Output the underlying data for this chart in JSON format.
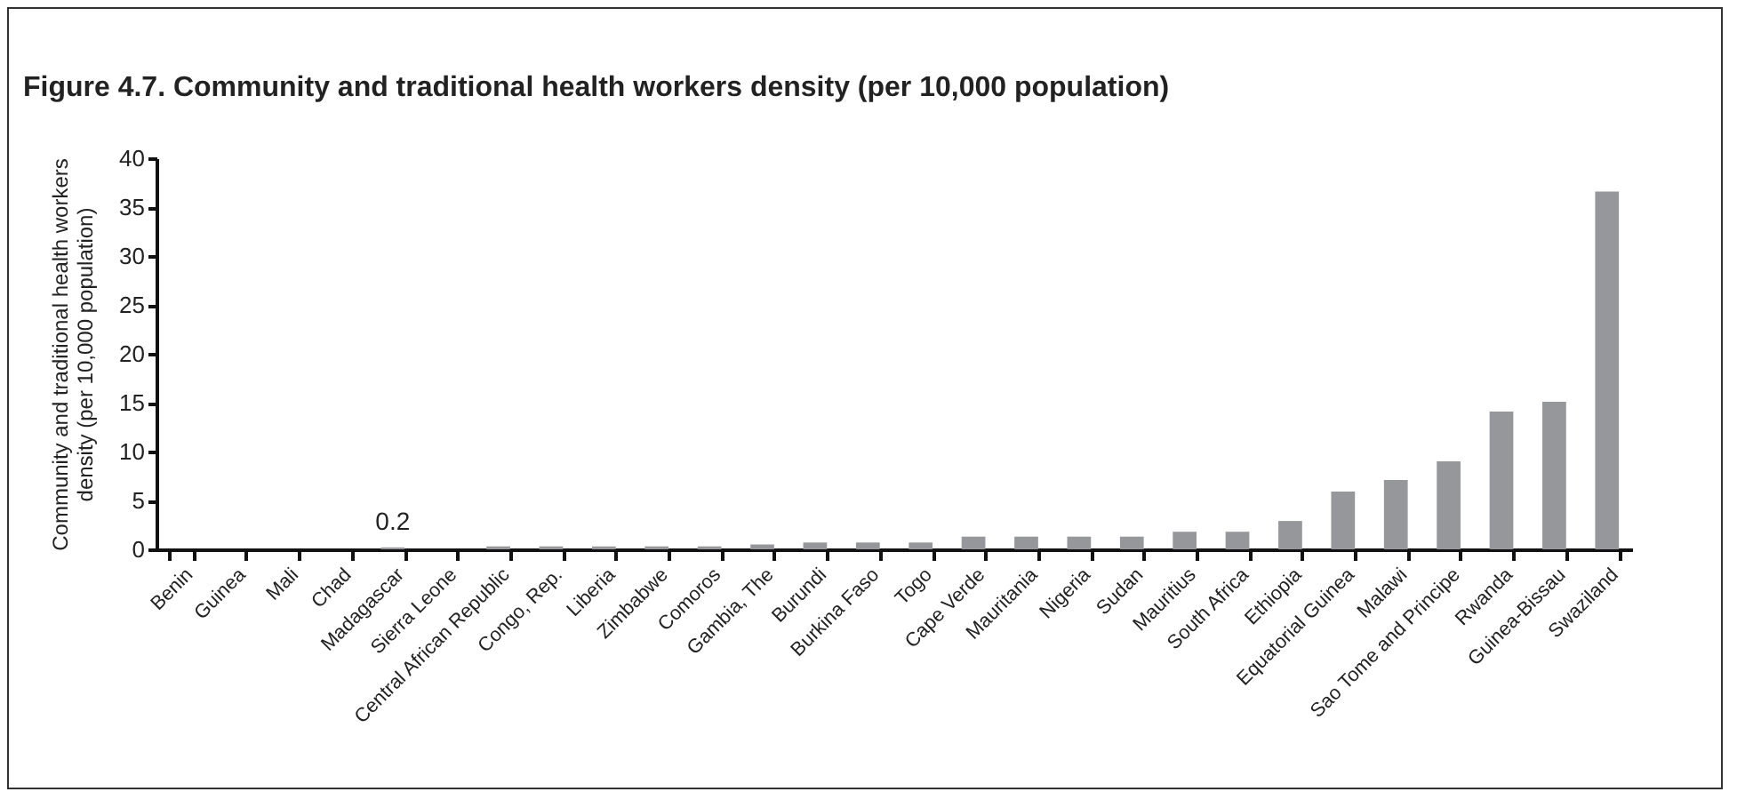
{
  "chart_data": {
    "type": "bar",
    "title": "Figure 4.7. Community and traditional health workers density (per 10,000 population)",
    "ylabel": "Community and traditional health workers density (per 10,000 population)",
    "categories": [
      "Benin",
      "Guinea",
      "Mali",
      "Chad",
      "Madagascar",
      "Sierra Leone",
      "Central African Republic",
      "Congo, Rep.",
      "Liberia",
      "Zimbabwe",
      "Comoros",
      "Gambia, The",
      "Burundi",
      "Burkina Faso",
      "Togo",
      "Cape Verde",
      "Mauritania",
      "Nigeria",
      "Sudan",
      "Mauritius",
      "South Africa",
      "Ethiopia",
      "Equatorial Guinea",
      "Malawi",
      "Sao Tome and Principe",
      "Rwanda",
      "Guinea-Bissau",
      "Swaziland"
    ],
    "values": [
      0,
      0,
      0,
      0,
      0.2,
      0,
      0.3,
      0.3,
      0.3,
      0.3,
      0.3,
      0.5,
      0.7,
      0.7,
      0.7,
      1.3,
      1.3,
      1.3,
      1.3,
      1.8,
      1.8,
      2.9,
      5.9,
      7.1,
      9.0,
      14.1,
      15.1,
      36.6
    ],
    "value_labels": [
      null,
      null,
      null,
      null,
      "0.2",
      null,
      null,
      null,
      null,
      null,
      null,
      null,
      null,
      null,
      null,
      null,
      null,
      null,
      null,
      null,
      null,
      null,
      null,
      null,
      null,
      null,
      null,
      null
    ],
    "color": "#96979b",
    "ylim": [
      0,
      40
    ],
    "yticks": [
      0,
      5,
      10,
      15,
      20,
      25,
      30,
      35,
      40
    ],
    "grid": false
  }
}
